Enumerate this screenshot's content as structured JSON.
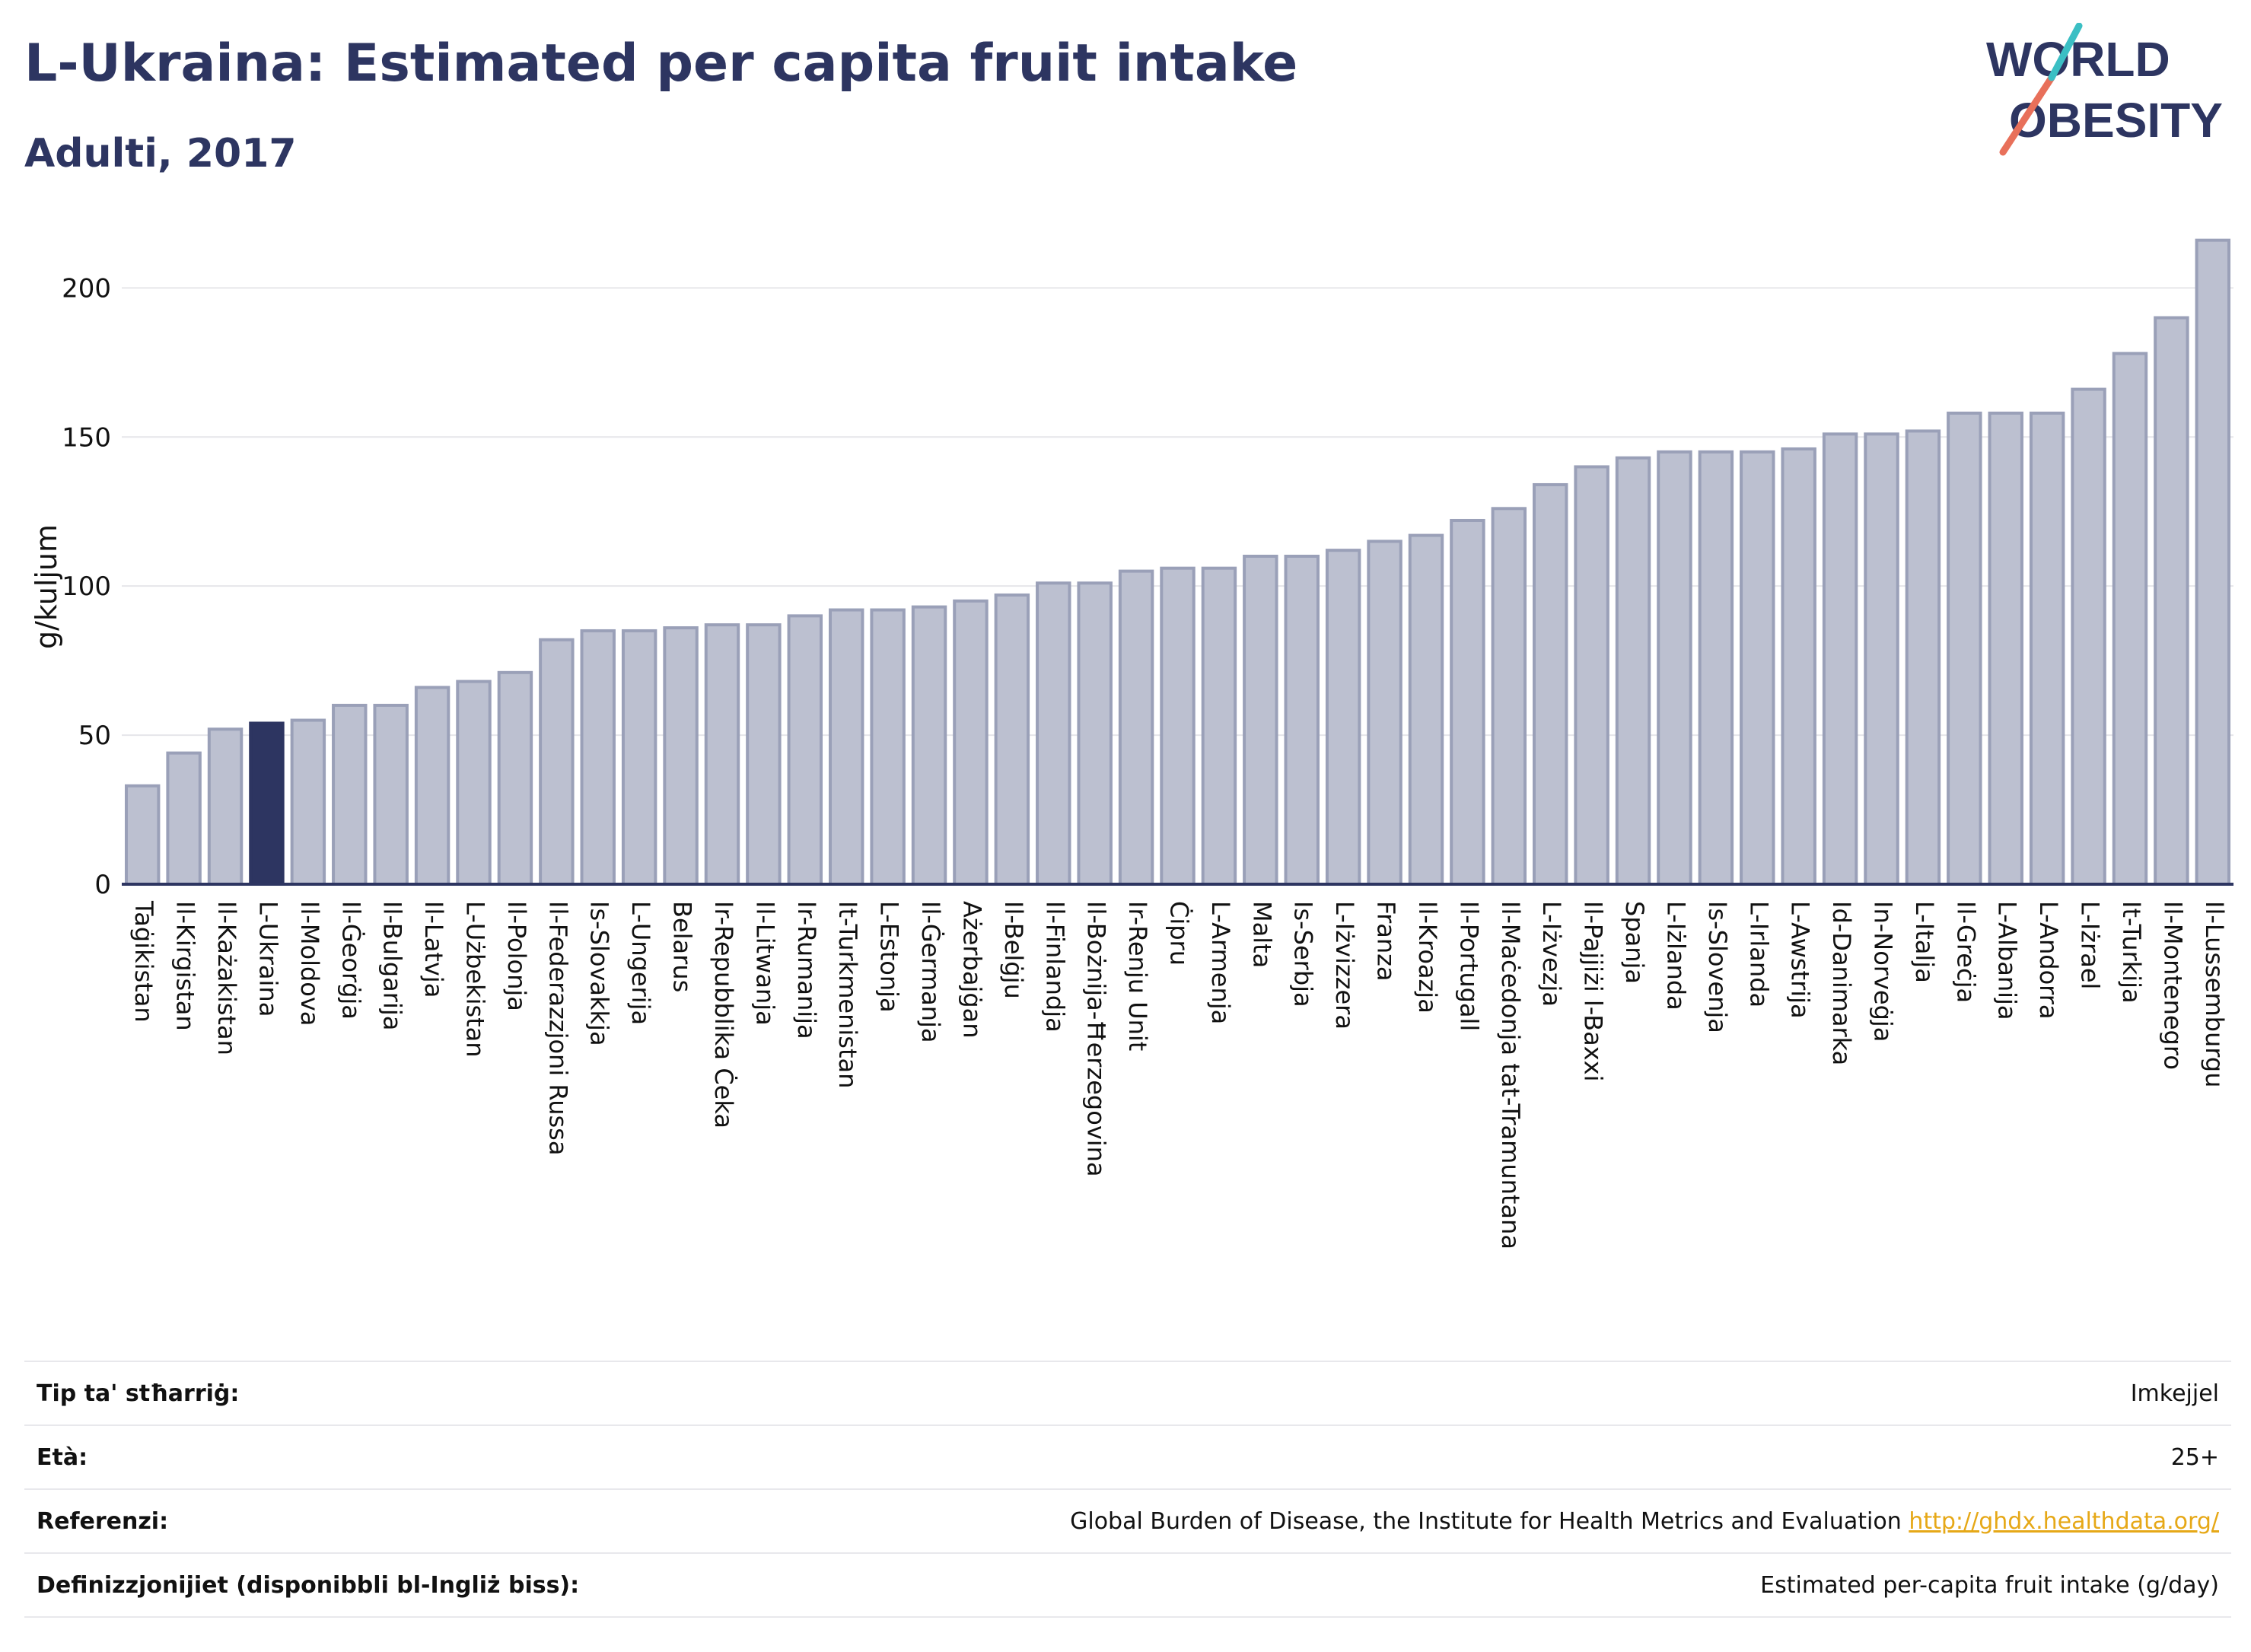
{
  "header": {
    "title": "L-Ukraina: Estimated per capita fruit intake",
    "subtitle": "Adulti, 2017"
  },
  "logo": {
    "line1": "WORLD",
    "line2": "OBESITY"
  },
  "colors": {
    "bar": "#bcc0d0",
    "bar_stroke": "#9aa0b8",
    "highlight": "#2d3561",
    "text": "#2d3561",
    "grid": "#e6e6ea"
  },
  "chart_data": {
    "type": "bar",
    "title": "L-Ukraina: Estimated per capita fruit intake",
    "subtitle": "Adulti, 2017",
    "ylabel": "g/kuljum",
    "xlabel": "",
    "ylim": [
      0,
      220
    ],
    "yticks": [
      0,
      50,
      100,
      150,
      200
    ],
    "grid": true,
    "highlight": "L-Ukraina",
    "categories": [
      "Taġikistan",
      "Il-Kirgistan",
      "Il-Każakistan",
      "L-Ukraina",
      "Il-Moldova",
      "Il-Ġeorġja",
      "Il-Bulgarija",
      "Il-Latvja",
      "L-Użbekistan",
      "Il-Polonja",
      "Il-Federazzjoni Russa",
      "Is-Slovakkja",
      "L-Ungerija",
      "Belarus",
      "Ir-Repubblika Ċeka",
      "Il-Litwanja",
      "Ir-Rumanija",
      "It-Turkmenistan",
      "L-Estonja",
      "Il-Ġermanja",
      "Ażerbajġan",
      "Il-Belġju",
      "Il-Finlandja",
      "Il-Bożnija-Ħerzegovina",
      "Ir-Renju Unit",
      "Ċipru",
      "L-Armenja",
      "Malta",
      "Is-Serbja",
      "L-Iżvizzera",
      "Franza",
      "Il-Kroazja",
      "Il-Portugall",
      "Il-Maċedonja tat-Tramuntana",
      "L-Iżvezja",
      "Il-Pajjiżi l-Baxxi",
      "Spanja",
      "L-Iżlanda",
      "Is-Slovenja",
      "L-Irlanda",
      "L-Awstrija",
      "Id-Danimarka",
      "In-Norveġja",
      "L-Italja",
      "Il-Greċja",
      "L-Albanija",
      "L-Andorra",
      "L-Iżrael",
      "It-Turkija",
      "Il-Montenegro",
      "Il-Lussemburgu"
    ],
    "values": [
      33,
      44,
      52,
      54,
      55,
      60,
      60,
      66,
      68,
      71,
      82,
      85,
      85,
      86,
      87,
      87,
      90,
      92,
      92,
      93,
      95,
      97,
      101,
      101,
      105,
      106,
      106,
      110,
      110,
      112,
      115,
      117,
      122,
      126,
      134,
      140,
      143,
      145,
      145,
      145,
      146,
      151,
      151,
      152,
      158,
      158,
      158,
      166,
      178,
      190,
      216
    ]
  },
  "footer": {
    "rows": [
      {
        "label": "Tip ta' stħarriġ:",
        "value": "Imkejjel"
      },
      {
        "label": "Età:",
        "value": "25+"
      },
      {
        "label": "Referenzi:",
        "value": "Global Burden of Disease, the Institute for Health Metrics and Evaluation",
        "link": "http://ghdx.healthdata.org/"
      },
      {
        "label": "Definizzjonijiet (disponibbli bl-Ingliż biss):",
        "value": "Estimated per-capita fruit intake (g/day)"
      }
    ]
  }
}
